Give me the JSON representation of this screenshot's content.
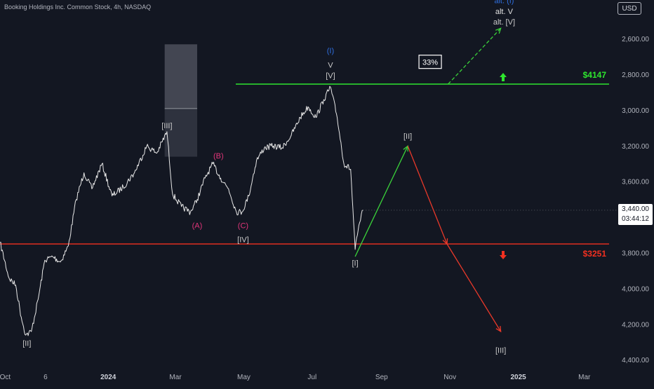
{
  "header": {
    "title": "Booking Holdings Inc. Common Stock, 4h, NASDAQ",
    "currency": "USD"
  },
  "price_axis": {
    "ticks": [
      "4,400.00",
      "4,200.00",
      "4,000.00",
      "3,800.00",
      "3,600.00",
      "3,200.00",
      "3,000.00",
      "2,800.00",
      "2,600.00"
    ],
    "last_price": "3,440.00",
    "countdown": "03:44:12"
  },
  "time_axis": {
    "ticks": [
      "Oct",
      "6",
      "2024",
      "Mar",
      "May",
      "Jul",
      "Sep",
      "Nov",
      "2025",
      "Mar"
    ]
  },
  "levels": {
    "upper": {
      "label": "$4147",
      "value": 4147,
      "color": "#2ee62e"
    },
    "lower": {
      "label": "$3251",
      "value": 3251,
      "color": "#f23020"
    }
  },
  "probability_box": "33%",
  "colors": {
    "background": "#131722",
    "price_series": "#e8e8e8",
    "upper_level": "#2ee62e",
    "lower_level": "#f23020",
    "green_path": "#3ad13a",
    "red_path": "#e8392a",
    "wave_labels_grey": "#c8c8c8",
    "wave_labels_abc": "#e2357a",
    "wave_labels_blue": "#2f6fe0",
    "zone_fill": "#6b6e7a"
  },
  "wave_labels": {
    "ii_low": "[II]",
    "iii_peak": "[III]",
    "a": "(A)",
    "b": "(B)",
    "c": "(C)",
    "iv": "[IV]",
    "i_blue": "(I)",
    "v": "V",
    "v_bracket": "[V]",
    "i_bracket": "[I]",
    "ii_target": "[II]",
    "iii_target": "[III]",
    "alt_i": "alt. (I)",
    "alt_v": "alt. V",
    "alt_v_bracket": "alt. [V]"
  },
  "chart_data": {
    "type": "line",
    "title": "Booking Holdings Inc. Common Stock, 4h, NASDAQ",
    "xlabel": "",
    "ylabel": "",
    "ylim": [
      2560,
      4560
    ],
    "grid": false,
    "x_ticks": [
      "Oct",
      "6",
      "2024",
      "Mar",
      "May",
      "Jul",
      "Sep",
      "Nov",
      "2025",
      "Mar"
    ],
    "y_ticks": [
      2600,
      2800,
      3000,
      3200,
      3600,
      3800,
      4000,
      4200,
      4400
    ],
    "series": [
      {
        "points": [
          [
            "2023-09-27",
            3260
          ],
          [
            "2023-10-05",
            3060
          ],
          [
            "2023-10-11",
            3020
          ],
          [
            "2023-10-16",
            2840
          ],
          [
            "2023-10-20",
            2740
          ],
          [
            "2023-10-25",
            2760
          ],
          [
            "2023-10-31",
            2940
          ],
          [
            "2023-11-06",
            3160
          ],
          [
            "2023-11-13",
            3180
          ],
          [
            "2023-11-20",
            3150
          ],
          [
            "2023-11-27",
            3240
          ],
          [
            "2023-12-04",
            3500
          ],
          [
            "2023-12-11",
            3650
          ],
          [
            "2023-12-18",
            3560
          ],
          [
            "2023-12-27",
            3700
          ],
          [
            "2024-01-05",
            3520
          ],
          [
            "2024-01-15",
            3570
          ],
          [
            "2024-01-25",
            3650
          ],
          [
            "2024-02-05",
            3800
          ],
          [
            "2024-02-14",
            3760
          ],
          [
            "2024-02-23",
            3880
          ],
          [
            "2024-02-28",
            3530
          ],
          [
            "2024-03-07",
            3460
          ],
          [
            "2024-03-15",
            3430
          ],
          [
            "2024-03-21",
            3500
          ],
          [
            "2024-03-28",
            3620
          ],
          [
            "2024-04-04",
            3700
          ],
          [
            "2024-04-11",
            3620
          ],
          [
            "2024-04-18",
            3560
          ],
          [
            "2024-04-25",
            3430
          ],
          [
            "2024-04-30",
            3430
          ],
          [
            "2024-05-06",
            3520
          ],
          [
            "2024-05-13",
            3720
          ],
          [
            "2024-05-20",
            3790
          ],
          [
            "2024-05-28",
            3800
          ],
          [
            "2024-06-05",
            3790
          ],
          [
            "2024-06-13",
            3860
          ],
          [
            "2024-06-21",
            3960
          ],
          [
            "2024-06-28",
            4020
          ],
          [
            "2024-07-05",
            3960
          ],
          [
            "2024-07-12",
            4060
          ],
          [
            "2024-07-18",
            4130
          ],
          [
            "2024-07-24",
            3960
          ],
          [
            "2024-07-30",
            3700
          ],
          [
            "2024-08-05",
            3670
          ],
          [
            "2024-08-09",
            3220
          ],
          [
            "2024-08-13",
            3370
          ],
          [
            "2024-08-16",
            3440
          ]
        ]
      }
    ],
    "levels": [
      {
        "label": "$4147",
        "value": 4147
      },
      {
        "label": "$3251",
        "value": 3251
      }
    ],
    "projections": [
      {
        "points": [
          [
            "2024-08-09",
            3180
          ],
          [
            "2024-09-25",
            3800
          ]
        ]
      },
      {
        "points": [
          [
            "2024-09-25",
            3800
          ],
          [
            "2024-10-30",
            3251
          ],
          [
            "2024-12-17",
            2760
          ]
        ]
      },
      {
        "points": [
          [
            "2024-10-31",
            4147
          ],
          [
            "2024-12-17",
            4460
          ]
        ]
      }
    ],
    "zone": {
      "from": "2024-02-21",
      "to": "2024-03-21",
      "y_top": 4370,
      "y_mid": 4010,
      "y_bottom": 3740
    },
    "annotations": [
      {
        "text": "[II]",
        "at": [
          "2023-10-21",
          2680
        ]
      },
      {
        "text": "[III]",
        "at": [
          "2024-02-23",
          3900
        ]
      },
      {
        "text": "(A)",
        "at": [
          "2024-03-21",
          3340
        ]
      },
      {
        "text": "(B)",
        "at": [
          "2024-04-09",
          3730
        ]
      },
      {
        "text": "(C)",
        "at": [
          "2024-05-01",
          3340
        ]
      },
      {
        "text": "[IV]",
        "at": [
          "2024-05-01",
          3260
        ]
      },
      {
        "text": "(I)",
        "at": [
          "2024-07-18",
          4320
        ]
      },
      {
        "text": "V",
        "at": [
          "2024-07-18",
          4240
        ]
      },
      {
        "text": "[V]",
        "at": [
          "2024-07-18",
          4180
        ]
      },
      {
        "text": "[I]",
        "at": [
          "2024-08-09",
          3130
        ]
      },
      {
        "text": "[II]",
        "at": [
          "2024-09-25",
          3840
        ]
      },
      {
        "text": "[III]",
        "at": [
          "2024-12-17",
          2640
        ]
      },
      {
        "text": "alt. (I)",
        "at": [
          "2024-12-20",
          4600
        ]
      },
      {
        "text": "alt. V",
        "at": [
          "2024-12-20",
          4540
        ]
      },
      {
        "text": "alt. [V]",
        "at": [
          "2024-12-20",
          4480
        ]
      },
      {
        "text": "33%",
        "at": [
          "2024-10-15",
          4270
        ]
      }
    ]
  }
}
